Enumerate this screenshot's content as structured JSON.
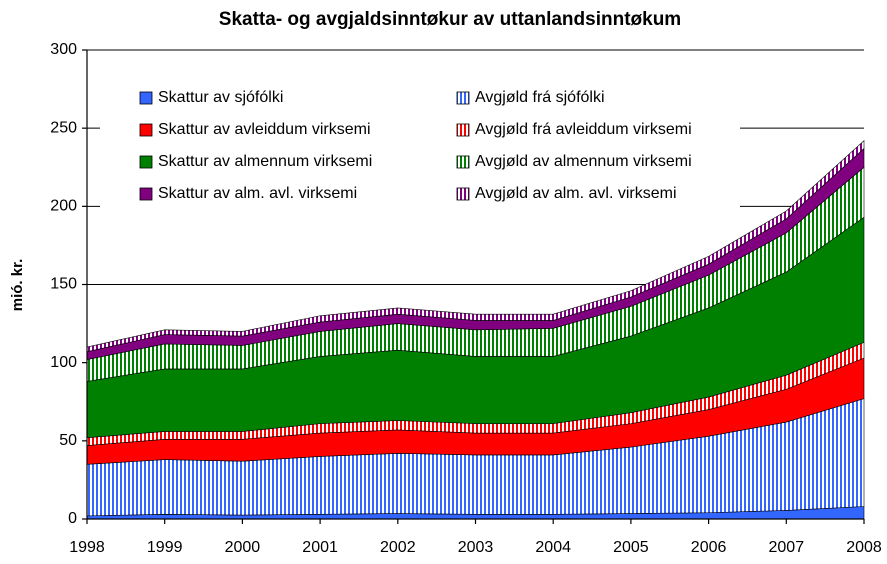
{
  "chart_data": {
    "type": "stacked-area",
    "title": "Skatta- og avgjaldsinntøkur av uttanlandsinntøkum",
    "y_label": "mió. kr.",
    "categories": [
      "1998",
      "1999",
      "2000",
      "2001",
      "2002",
      "2003",
      "2004",
      "2005",
      "2006",
      "2007",
      "2008"
    ],
    "ylim": [
      0,
      300
    ],
    "yticks": [
      0,
      50,
      100,
      150,
      200,
      250,
      300
    ],
    "grid": true,
    "legend": "top-left",
    "series": [
      {
        "name": "Skattur av sjófólki",
        "color": "#3366ff",
        "fill": "solid",
        "values": [
          2,
          3,
          2.5,
          3,
          3.5,
          3,
          3,
          3.5,
          4,
          5.5,
          8
        ]
      },
      {
        "name": "Avgjøld frá sjófólki",
        "color": "#3366ff",
        "fill": "stripes",
        "values": [
          33,
          35,
          34.5,
          37,
          38.5,
          38,
          38,
          42.5,
          49,
          56.5,
          69
        ]
      },
      {
        "name": "Skattur av avleiddum virksemi",
        "color": "#ff0000",
        "fill": "solid",
        "values": [
          12,
          13,
          14,
          15,
          15,
          14,
          14,
          15,
          17,
          21,
          26
        ]
      },
      {
        "name": "Avgjøld frá avleiddum virksemi",
        "color": "#ff0000",
        "fill": "stripes",
        "values": [
          5,
          5,
          5,
          6,
          6,
          6,
          6,
          7,
          8,
          9,
          10
        ]
      },
      {
        "name": "Skattur av almennum virksemi",
        "color": "#008000",
        "fill": "solid",
        "values": [
          36,
          40,
          40,
          43,
          45,
          43,
          43,
          49,
          57,
          66,
          80
        ]
      },
      {
        "name": "Avgjøld av almennum virksemi",
        "color": "#008000",
        "fill": "stripes",
        "values": [
          14,
          16,
          15,
          16,
          17,
          17,
          18,
          19,
          21,
          25,
          32
        ]
      },
      {
        "name": "Skattur av alm. avl. virksemi",
        "color": "#800080",
        "fill": "solid",
        "values": [
          5,
          6,
          6,
          6,
          6,
          6,
          5,
          6,
          7,
          9,
          12
        ]
      },
      {
        "name": "Avgjøld av alm. avl. virksemi",
        "color": "#800080",
        "fill": "stripes",
        "values": [
          3,
          3,
          3,
          4,
          4,
          4,
          4,
          4,
          5,
          5,
          5
        ]
      }
    ]
  }
}
